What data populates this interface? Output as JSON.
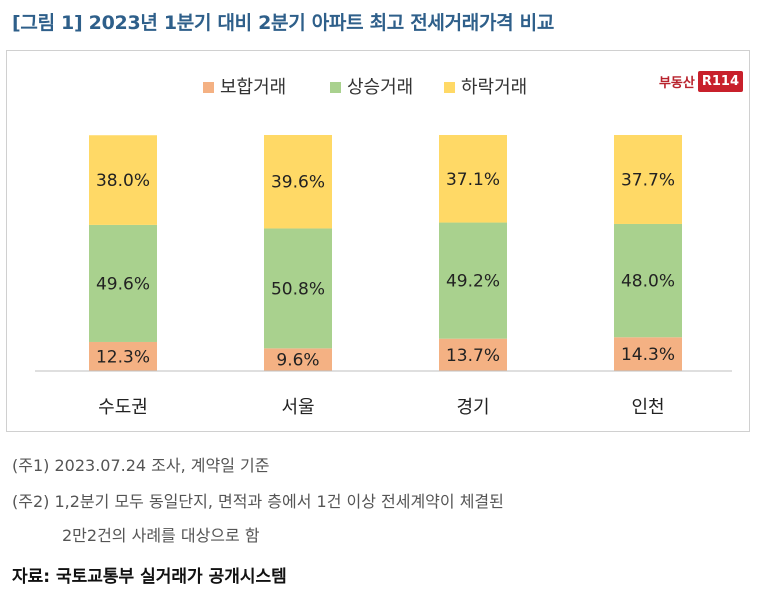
{
  "title": "[그림 1] 2023년 1분기 대비 2분기 아파트 최고 전세거래가격 비교",
  "logo": {
    "text": "부동산",
    "badge": "R114"
  },
  "colors": {
    "flat": "#f4b183",
    "rise": "#a9d18e",
    "fall": "#ffd966",
    "title": "#2e5f8a"
  },
  "chart_data": {
    "type": "bar",
    "stacked": true,
    "categories": [
      "수도권",
      "서울",
      "경기",
      "인천"
    ],
    "series": [
      {
        "name": "보합거래",
        "values": [
          12.3,
          9.6,
          13.7,
          14.3
        ],
        "labels": [
          "12.3%",
          "9.6%",
          "13.7%",
          "14.3%"
        ]
      },
      {
        "name": "상승거래",
        "values": [
          49.6,
          50.8,
          49.2,
          48.0
        ],
        "labels": [
          "49.6%",
          "50.8%",
          "49.2%",
          "48.0%"
        ]
      },
      {
        "name": "하락거래",
        "values": [
          38.0,
          39.6,
          37.1,
          37.7
        ],
        "labels": [
          "38.0%",
          "39.6%",
          "37.1%",
          "37.7%"
        ]
      }
    ],
    "ylim": [
      0,
      100
    ],
    "legend": "top-center",
    "grid": false
  },
  "notes": [
    "(주1) 2023.07.24 조사, 계약일 기준",
    "(주2) 1,2분기 모두 동일단지, 면적과 층에서 1건 이상 전세계약이 체결된",
    "2만2건의 사례를 대상으로 함"
  ],
  "source": "자료: 국토교통부 실거래가 공개시스템"
}
